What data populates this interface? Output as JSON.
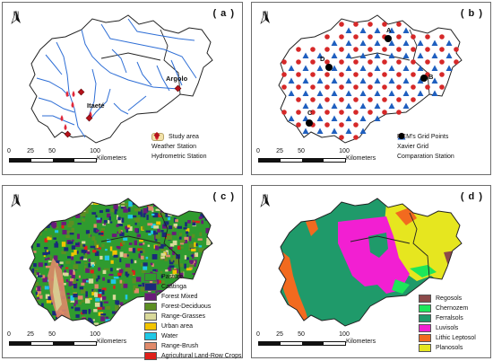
{
  "panels": {
    "a": {
      "label": "( a )",
      "north": "N",
      "places": {
        "argolo": "Argolo",
        "itaete": "Itaeté"
      },
      "scale": {
        "ticks": [
          "0",
          "25",
          "50",
          "100"
        ],
        "unit": "Kilometers"
      },
      "legend": [
        {
          "label": "Study area",
          "symbol": "area",
          "color": "#f2e2a8"
        },
        {
          "label": "Weather Station",
          "symbol": "drop",
          "color": "#e0283a"
        },
        {
          "label": "Hydrometric Station",
          "symbol": "diamond",
          "color": "#b5121b"
        }
      ]
    },
    "b": {
      "label": "( b )",
      "north": "N",
      "points": {
        "a": "A",
        "b": "B",
        "c": "C",
        "d": "D"
      },
      "scale": {
        "ticks": [
          "0",
          "25",
          "50",
          "100"
        ],
        "unit": "Kilometers"
      },
      "legend": [
        {
          "label": "RCM's Grid Points",
          "symbol": "circle",
          "color": "#d62828"
        },
        {
          "label": "Xavier Grid",
          "symbol": "triangle",
          "color": "#1f5fbf"
        },
        {
          "label": "Comparation Station",
          "symbol": "circle",
          "color": "#000000"
        }
      ]
    },
    "c": {
      "label": "( c )",
      "north": "N",
      "scale": {
        "ticks": [
          "0",
          "25",
          "50",
          "100"
        ],
        "unit": "Kilometers"
      },
      "legend": [
        {
          "label": "Pasture",
          "color": "#2f9b2f"
        },
        {
          "label": "Caatinga",
          "color": "#1a2a7a"
        },
        {
          "label": "Forest Mixed",
          "color": "#6a1b7a"
        },
        {
          "label": "Forest-Deciduous",
          "color": "#5c8f22"
        },
        {
          "label": "Range-Grasses",
          "color": "#d9d99a"
        },
        {
          "label": "Urban area",
          "color": "#f2c400"
        },
        {
          "label": "Water",
          "color": "#1fc8e6"
        },
        {
          "label": "Range-Brush",
          "color": "#e08a6a"
        },
        {
          "label": "Agricultural Land-Row Crops",
          "color": "#e0201a"
        }
      ]
    },
    "d": {
      "label": "( d )",
      "north": "N",
      "scale": {
        "ticks": [
          "0",
          "25",
          "50",
          "100"
        ],
        "unit": "Kilometers"
      },
      "legend": [
        {
          "label": "Regosols",
          "color": "#8c4a4a"
        },
        {
          "label": "Chernozem",
          "color": "#1ee65a"
        },
        {
          "label": "Ferralsols",
          "color": "#1f9a6a"
        },
        {
          "label": "Luvisols",
          "color": "#f21fd2"
        },
        {
          "label": "Lithic Leptosol",
          "color": "#f26a1f"
        },
        {
          "label": "Planosols",
          "color": "#e6e61f"
        }
      ]
    }
  }
}
